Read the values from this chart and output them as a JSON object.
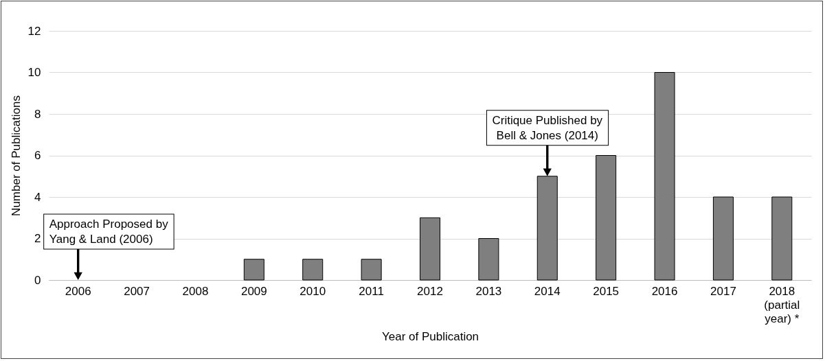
{
  "chart_data": {
    "type": "bar",
    "xlabel": "Year of Publication",
    "ylabel": "Number of Publications",
    "categories": [
      "2006",
      "2007",
      "2008",
      "2009",
      "2010",
      "2011",
      "2012",
      "2013",
      "2014",
      "2015",
      "2016",
      "2017",
      "2018 (partial year) *"
    ],
    "values": [
      0,
      0,
      0,
      1,
      1,
      1,
      3,
      2,
      5,
      6,
      10,
      4,
      4
    ],
    "color": "#7f7f7f",
    "ylim": [
      0,
      12
    ],
    "yticks": [
      0,
      2,
      4,
      6,
      8,
      10,
      12
    ],
    "grid": "y",
    "annotations": [
      {
        "text": "Approach Proposed by Yang & Land (2006)",
        "x": "2006",
        "y": 0
      },
      {
        "text": "Critique Published by Bell & Jones (2014)",
        "x": "2014",
        "y": 5
      }
    ]
  }
}
